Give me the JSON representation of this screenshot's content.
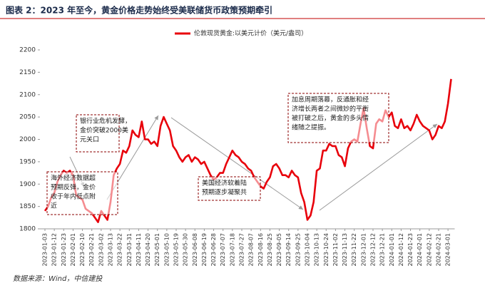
{
  "chart_data": {
    "type": "line",
    "title": "图表 2：2023 年至今，黄金价格走势始终受美联储货币政策预期牵引",
    "source": "数据来源：Wind，中信建投",
    "legend_position": "top",
    "ylim": [
      1800,
      2200
    ],
    "yticks": [
      1800,
      1850,
      1900,
      1950,
      2000,
      2050,
      2100,
      2150,
      2200
    ],
    "grid": false,
    "categories": [
      "2023-01-03",
      null,
      null,
      "2023-01-12",
      null,
      null,
      "2023-01-23",
      null,
      null,
      "2023-02-01",
      null,
      null,
      "2023-02-10",
      null,
      null,
      "2023-02-21",
      null,
      null,
      "2023-03-02",
      null,
      null,
      "2023-03-13",
      null,
      null,
      "2023-03-22",
      null,
      null,
      "2023-03-31",
      null,
      null,
      "2023-04-11",
      null,
      null,
      "2023-04-20",
      null,
      null,
      "2023-05-01",
      null,
      null,
      "2023-05-10",
      null,
      null,
      "2023-05-19",
      null,
      null,
      "2023-05-30",
      null,
      null,
      "2023-06-08",
      null,
      null,
      "2023-06-19",
      null,
      null,
      "2023-06-28",
      null,
      null,
      "2023-07-07",
      null,
      null,
      "2023-07-18",
      null,
      null,
      "2023-07-27",
      null,
      null,
      "2023-08-07",
      null,
      null,
      "2023-08-16",
      null,
      null,
      "2023-08-25",
      null,
      null,
      "2023-09-05",
      null,
      null,
      "2023-09-14",
      null,
      null,
      "2023-09-25",
      null,
      null,
      "2023-10-04",
      null,
      null,
      "2023-10-13",
      null,
      null,
      "2023-10-24",
      null,
      null,
      "2023-11-02",
      null,
      null,
      "2023-11-13",
      null,
      null,
      "2023-11-22",
      null,
      null,
      "2023-12-01",
      null,
      null,
      "2023-12-12",
      null,
      null,
      "2023-12-21",
      null,
      null,
      "2024-01-01",
      null,
      null,
      "2024-01-12",
      null,
      null,
      "2024-01-23",
      null,
      null,
      "2024-02-01",
      null,
      null,
      "2024-02-12",
      null,
      null,
      "2024-02-21",
      null,
      null,
      "2024-03-01",
      null
    ],
    "series": [
      {
        "name": "伦敦现货黄金:以美元计价（美元/盎司）",
        "color": "#e8000b",
        "values": [
          1840,
          1850,
          1870,
          1880,
          1905,
          1920,
          1930,
          1925,
          1930,
          1920,
          1875,
          1870,
          1865,
          1845,
          1840,
          1835,
          1825,
          1815,
          1840,
          1830,
          1820,
          1860,
          1920,
          1935,
          1945,
          1975,
          1970,
          1985,
          2020,
          2010,
          2005,
          2040,
          2000,
          2000,
          1990,
          1995,
          1985,
          2030,
          2050,
          2035,
          2020,
          1985,
          1975,
          1960,
          1950,
          1960,
          1965,
          1950,
          1960,
          1955,
          1945,
          1950,
          1935,
          1920,
          1910,
          1915,
          1925,
          1925,
          1945,
          1960,
          1975,
          1965,
          1960,
          1950,
          1945,
          1935,
          1930,
          1915,
          1905,
          1895,
          1890,
          1905,
          1915,
          1940,
          1945,
          1935,
          1920,
          1920,
          1915,
          1930,
          1920,
          1915,
          1880,
          1860,
          1820,
          1830,
          1860,
          1930,
          1935,
          1975,
          1975,
          1990,
          1985,
          1985,
          1965,
          1960,
          1940,
          1980,
          1995,
          2000,
          1995,
          2035,
          2070,
          2025,
          1985,
          1980,
          2035,
          2045,
          2040,
          2065,
          2050,
          2060,
          2030,
          2025,
          2045,
          2025,
          2030,
          2020,
          2035,
          2055,
          2040,
          2030,
          2025,
          2020,
          2000,
          2010,
          2030,
          2025,
          2040,
          2080,
          2135
        ]
      }
    ],
    "annotations": [
      {
        "lines": [
          "银行业危机发酵，",
          "金价突破2000美",
          "元关口"
        ]
      },
      {
        "lines": [
          "海外经济数据超",
          "预期反弹，金价",
          "收于年内低点附",
          "近"
        ]
      },
      {
        "lines": [
          "美国经济软着陆",
          "预期逐步凝聚共"
        ]
      },
      {
        "lines": [
          "加息周期落幕，反通胀和经",
          "济增长两者之间微妙的平衡",
          "被打破之后，黄金的多头情",
          "绪随之提振。"
        ]
      }
    ]
  }
}
